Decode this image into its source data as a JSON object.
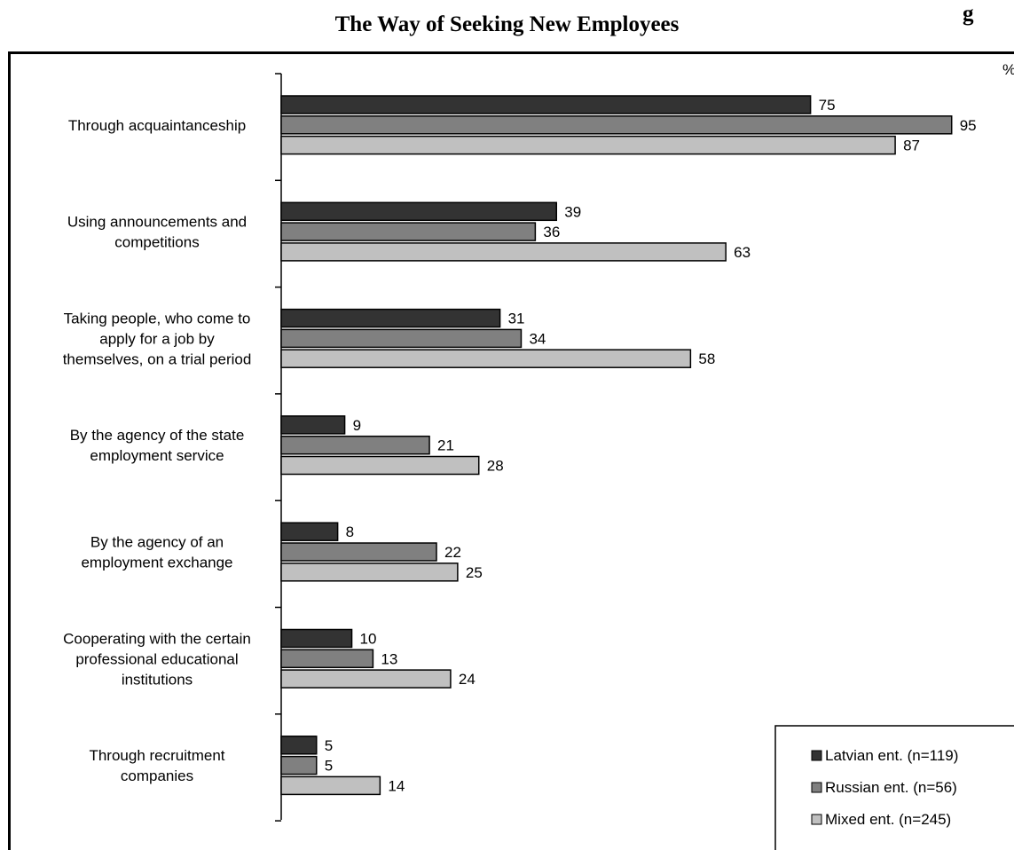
{
  "corner_label": "g",
  "chart_data": {
    "type": "bar",
    "orientation": "horizontal",
    "title": "The Way of Seeking New Employees",
    "unit_label": "%",
    "xlim": [
      0,
      100
    ],
    "categories": [
      [
        "Through acquaintanceship"
      ],
      [
        "Using announcements and",
        "competitions"
      ],
      [
        "Taking people, who come to",
        "apply for a job by",
        "themselves, on a trial period"
      ],
      [
        "By the agency of the state",
        "employment service"
      ],
      [
        "By the agency of an",
        "employment exchange"
      ],
      [
        "Cooperating with the certain",
        "professional educational",
        "institutions"
      ],
      [
        "Through recruitment",
        "companies"
      ]
    ],
    "series": [
      {
        "name": "Latvian ent. (n=119)",
        "color": "#333333",
        "values": [
          75,
          39,
          31,
          9,
          8,
          10,
          5
        ]
      },
      {
        "name": "Russian ent. (n=56)",
        "color": "#808080",
        "values": [
          95,
          36,
          34,
          21,
          22,
          13,
          5
        ]
      },
      {
        "name": "Mixed ent. (n=245)",
        "color": "#c0c0c0",
        "values": [
          87,
          63,
          58,
          28,
          25,
          24,
          14
        ]
      }
    ],
    "legend_position": "bottom-right",
    "grid": false
  }
}
